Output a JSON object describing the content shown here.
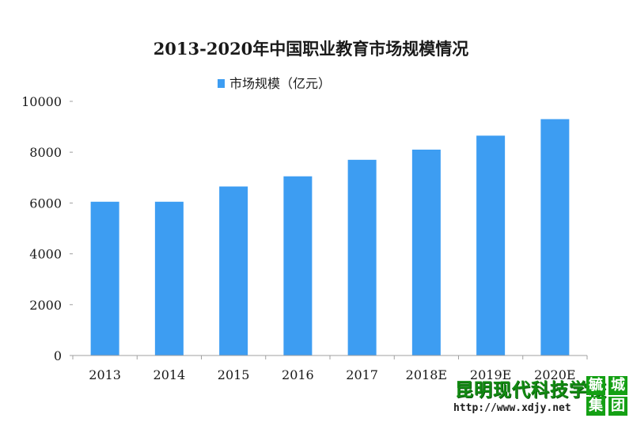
{
  "chart_data": {
    "type": "bar",
    "title": "2013-2020年中国职业教育市场规模情况",
    "categories": [
      "2013",
      "2014",
      "2015",
      "2016",
      "2017",
      "2018E",
      "2019E",
      "2020E"
    ],
    "series": [
      {
        "name": "市场规模（亿元）",
        "values": [
          6050,
          6050,
          6650,
          7050,
          7700,
          8100,
          8650,
          9300
        ]
      }
    ],
    "ylim": [
      0,
      10000
    ],
    "yticks": [
      0,
      2000,
      4000,
      6000,
      8000,
      10000
    ],
    "grid": false,
    "legend_position": "top-center",
    "colors": {
      "bar": "#3d9df2",
      "axis": "#a0a0a0",
      "text": "#1a1a1a"
    }
  },
  "watermark": {
    "name": "昆明现代科技学校",
    "url": "http://www.xdjy.net",
    "badges": [
      "毓",
      "城",
      "集",
      "团"
    ]
  }
}
